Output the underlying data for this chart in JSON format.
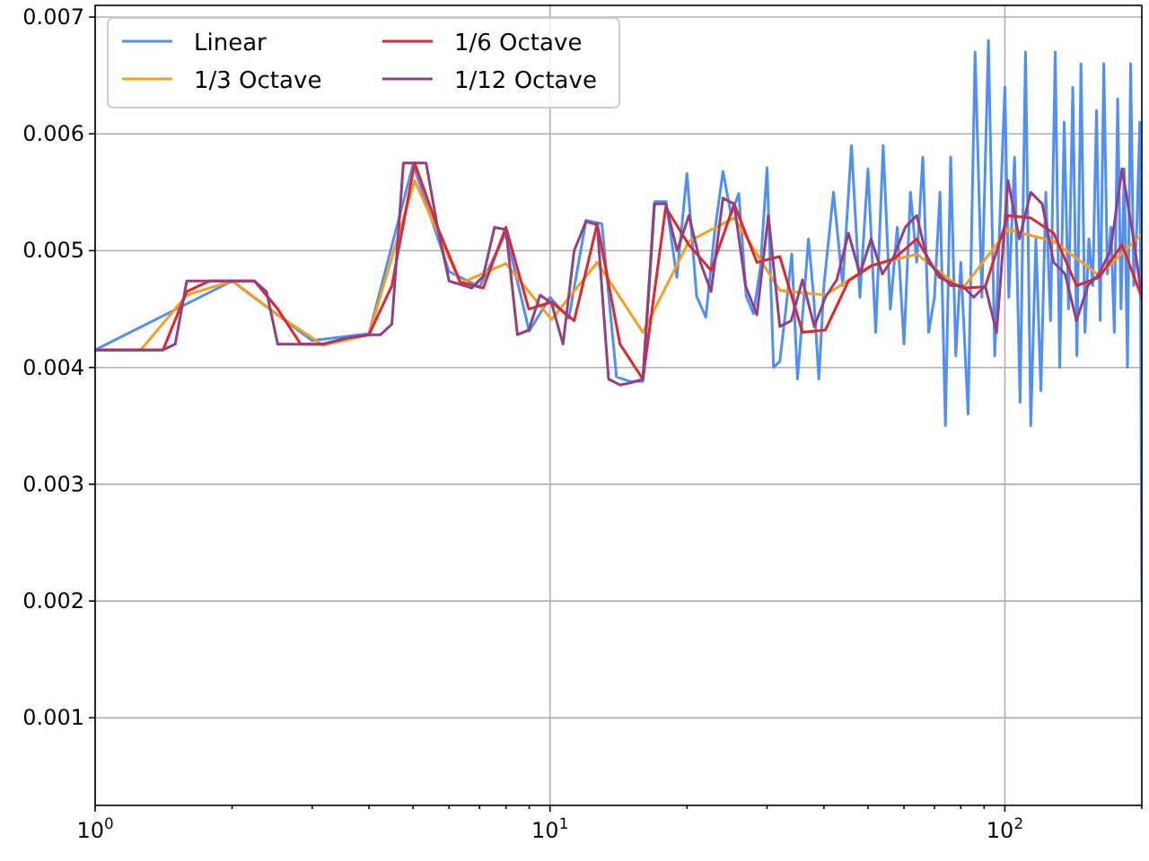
{
  "chart_data": {
    "type": "line",
    "log": "x",
    "grid": true,
    "legend": "top left",
    "xlim": [
      1,
      200
    ],
    "ylim": [
      0.00025,
      0.0071
    ],
    "xticks": [
      {
        "value": 1,
        "label": "10$^{0}$"
      },
      {
        "value": 2,
        "label": null
      },
      {
        "value": 3,
        "label": null
      },
      {
        "value": 4,
        "label": null
      },
      {
        "value": 5,
        "label": null
      },
      {
        "value": 6,
        "label": null
      },
      {
        "value": 7,
        "label": null
      },
      {
        "value": 8,
        "label": null
      },
      {
        "value": 9,
        "label": null
      },
      {
        "value": 10,
        "label": "10$^{1}$"
      },
      {
        "value": 20,
        "label": null
      },
      {
        "value": 30,
        "label": null
      },
      {
        "value": 40,
        "label": null
      },
      {
        "value": 50,
        "label": null
      },
      {
        "value": 60,
        "label": null
      },
      {
        "value": 70,
        "label": null
      },
      {
        "value": 80,
        "label": null
      },
      {
        "value": 90,
        "label": null
      },
      {
        "value": 100,
        "label": "10$^{2}$"
      },
      {
        "value": 200,
        "label": null
      }
    ],
    "yticks": [
      0.001,
      0.002,
      0.003,
      0.004,
      0.005,
      0.006,
      0.007
    ],
    "series": [
      {
        "name": "Linear",
        "color": "#4f8ff7",
        "x": [
          1,
          2,
          3,
          4,
          5,
          6,
          7,
          8,
          9,
          10,
          11,
          12,
          13,
          14,
          15,
          16,
          17,
          18,
          19,
          20,
          21,
          22,
          23,
          24,
          25,
          26,
          27,
          28,
          29,
          30,
          31,
          32,
          33,
          34,
          35,
          36,
          37,
          38,
          39,
          40,
          42,
          44,
          46,
          48,
          50,
          52,
          54,
          56,
          58,
          60,
          62,
          64,
          66,
          68,
          70,
          72,
          74,
          76,
          78,
          80,
          83,
          86,
          89,
          92,
          95,
          98,
          100,
          102,
          105,
          108,
          111,
          114,
          117,
          120,
          123,
          126,
          129,
          132,
          135,
          138,
          141,
          144,
          147,
          150,
          153,
          156,
          159,
          162,
          165,
          168,
          171,
          174,
          177,
          180,
          183,
          186,
          189,
          192,
          195,
          198,
          200
        ],
        "values": [
          0.00415,
          0.00474,
          0.00423,
          0.00429,
          0.00574,
          0.00482,
          0.00469,
          0.00515,
          0.00431,
          0.0046,
          0.00442,
          0.00526,
          0.00523,
          0.00392,
          0.00388,
          0.00388,
          0.00542,
          0.00542,
          0.00477,
          0.00566,
          0.00461,
          0.00443,
          0.00515,
          0.00568,
          0.00531,
          0.00549,
          0.00461,
          0.00446,
          0.00485,
          0.00571,
          0.004,
          0.00405,
          0.0045,
          0.00497,
          0.0039,
          0.0045,
          0.0051,
          0.0046,
          0.0039,
          0.0047,
          0.0055,
          0.0047,
          0.0059,
          0.0046,
          0.0057,
          0.0043,
          0.0059,
          0.0045,
          0.0052,
          0.0042,
          0.0055,
          0.0049,
          0.0058,
          0.0043,
          0.0046,
          0.0055,
          0.0035,
          0.0058,
          0.0041,
          0.0049,
          0.0036,
          0.0067,
          0.0046,
          0.0068,
          0.0041,
          0.0055,
          0.0064,
          0.0046,
          0.0058,
          0.0037,
          0.0067,
          0.0035,
          0.0051,
          0.0038,
          0.0055,
          0.0044,
          0.0067,
          0.004,
          0.0061,
          0.0045,
          0.0064,
          0.0041,
          0.0066,
          0.0043,
          0.0051,
          0.0047,
          0.0062,
          0.0044,
          0.0066,
          0.0048,
          0.0052,
          0.0043,
          0.0063,
          0.0045,
          0.0057,
          0.004,
          0.0066,
          0.0047,
          0.0052,
          0.0061,
          0.002
        ]
      },
      {
        "name": "1/3 Octave",
        "color": "#f59f1e",
        "x": [
          1,
          1.26,
          1.59,
          2,
          2.52,
          3.17,
          4,
          5.04,
          6.35,
          8,
          10.08,
          12.7,
          16,
          20.2,
          25.4,
          32,
          40.3,
          50.8,
          64,
          80.6,
          101.6,
          128,
          161,
          200
        ],
        "values": [
          0.00415,
          0.00415,
          0.00462,
          0.00474,
          0.00445,
          0.00419,
          0.00428,
          0.0056,
          0.00472,
          0.00489,
          0.00441,
          0.0049,
          0.0043,
          0.00508,
          0.00528,
          0.00466,
          0.00462,
          0.00487,
          0.00497,
          0.00467,
          0.00518,
          0.00508,
          0.00479,
          0.00514
        ]
      },
      {
        "name": "1/6 Octave",
        "color": "#e0262e",
        "x": [
          1,
          1.12,
          1.26,
          1.41,
          1.59,
          1.78,
          2,
          2.24,
          2.52,
          2.83,
          3.17,
          3.56,
          4,
          4.49,
          5.04,
          5.66,
          6.35,
          7.13,
          8,
          8.98,
          10.08,
          11.3,
          12.7,
          14.25,
          16,
          17.96,
          20.2,
          22.6,
          25.4,
          28.5,
          32,
          35.9,
          40.3,
          45.3,
          50.8,
          57,
          64,
          71.8,
          80.6,
          90.5,
          101.6,
          114,
          128,
          143.7,
          161,
          181,
          200
        ],
        "values": [
          0.00415,
          0.00415,
          0.00415,
          0.00415,
          0.00465,
          0.00474,
          0.00474,
          0.00474,
          0.0045,
          0.0042,
          0.0042,
          0.00425,
          0.00428,
          0.0047,
          0.00575,
          0.0052,
          0.00473,
          0.00468,
          0.0052,
          0.0045,
          0.00456,
          0.0044,
          0.00523,
          0.0042,
          0.0039,
          0.00537,
          0.00505,
          0.00483,
          0.0054,
          0.0049,
          0.00495,
          0.0043,
          0.00432,
          0.00474,
          0.00487,
          0.00493,
          0.0051,
          0.00477,
          0.00468,
          0.00469,
          0.0053,
          0.00528,
          0.00515,
          0.0047,
          0.00477,
          0.00505,
          0.0046
        ]
      },
      {
        "name": "1/12 Octave",
        "color": "#93407f",
        "x": [
          1,
          1.41,
          1.5,
          1.59,
          2.24,
          2.38,
          2.52,
          3.17,
          3.56,
          4,
          4.24,
          4.49,
          4.76,
          5.34,
          5.66,
          6,
          6.73,
          7.13,
          7.55,
          8,
          8.48,
          8.98,
          9.51,
          10.08,
          10.68,
          11.3,
          12,
          12.7,
          13.45,
          14.25,
          15.1,
          16,
          16.95,
          17.96,
          19.03,
          20.2,
          21.4,
          22.6,
          24,
          25.4,
          26.9,
          28.5,
          30.2,
          32,
          33.9,
          35.9,
          38.1,
          40.3,
          42.7,
          45.3,
          48,
          50.8,
          53.8,
          57,
          60.4,
          64,
          67.8,
          71.8,
          76.1,
          80.6,
          85.4,
          90.5,
          95.9,
          101.6,
          107.6,
          114,
          120.8,
          128,
          135.6,
          143.7,
          152.2,
          161,
          170.6,
          181,
          191.8,
          200
        ],
        "values": [
          0.00415,
          0.00415,
          0.0042,
          0.00474,
          0.00474,
          0.00465,
          0.0042,
          0.0042,
          0.00425,
          0.00428,
          0.00428,
          0.00437,
          0.00575,
          0.00575,
          0.0052,
          0.00474,
          0.00468,
          0.00478,
          0.0052,
          0.00518,
          0.00428,
          0.00432,
          0.00462,
          0.00455,
          0.0042,
          0.005,
          0.00525,
          0.00522,
          0.0039,
          0.00385,
          0.00387,
          0.0039,
          0.0054,
          0.0054,
          0.005,
          0.0053,
          0.0049,
          0.00465,
          0.00545,
          0.0054,
          0.0047,
          0.00445,
          0.0053,
          0.00435,
          0.0044,
          0.00475,
          0.00435,
          0.0046,
          0.00475,
          0.00515,
          0.0048,
          0.0051,
          0.0048,
          0.00495,
          0.0052,
          0.0053,
          0.0049,
          0.0048,
          0.0047,
          0.0047,
          0.0046,
          0.0047,
          0.0043,
          0.0056,
          0.0051,
          0.0055,
          0.0054,
          0.0049,
          0.0048,
          0.0044,
          0.0047,
          0.0048,
          0.005,
          0.0057,
          0.0051,
          0.0046
        ]
      }
    ]
  }
}
